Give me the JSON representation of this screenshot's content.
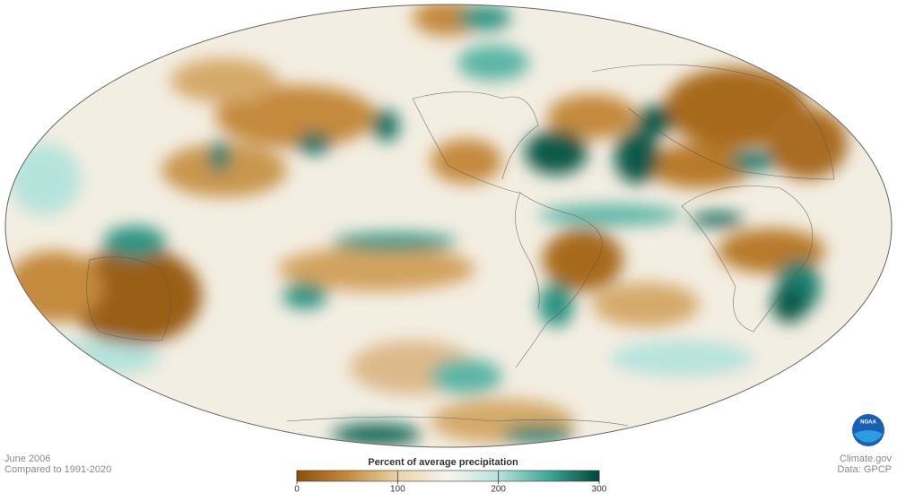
{
  "map": {
    "date": "June 2006",
    "baseline": "Compared to 1991-2020",
    "credit": "Climate.gov",
    "source": "Data: GPCP",
    "logo": "NOAA",
    "legend": {
      "title": "Percent of average precipitation",
      "range": [
        0,
        300
      ],
      "ticks": [
        0,
        100,
        200,
        300
      ],
      "colors": [
        "#8c5106",
        "#c48a3c",
        "#ead3a6",
        "#f8f5ee",
        "#b5e3dc",
        "#3fa796",
        "#00463a"
      ]
    }
  }
}
